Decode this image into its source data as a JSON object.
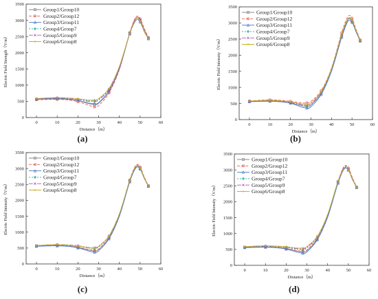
{
  "chart_data": [
    {
      "type": "line",
      "panel_label": "(a)",
      "xlabel": "Distance（m）",
      "ylabel": "Electric Field Strength（V/m）",
      "xlim": [
        -5,
        60
      ],
      "ylim": [
        0,
        3500
      ],
      "xticks": [
        0,
        10,
        20,
        30,
        40,
        50,
        60
      ],
      "yticks": [
        0,
        500,
        1000,
        1500,
        2000,
        2500,
        3000,
        3500
      ],
      "legend": "top-left",
      "x": [
        0,
        5,
        10,
        15,
        20,
        25,
        28,
        30,
        35,
        40,
        45,
        48,
        50,
        52,
        54
      ],
      "series": [
        {
          "name": "Group1/Group10",
          "values": [
            560,
            570,
            575,
            560,
            520,
            430,
            400,
            440,
            800,
            1500,
            2600,
            3050,
            3000,
            2700,
            2450
          ]
        },
        {
          "name": "Group2/Group12",
          "values": [
            550,
            555,
            560,
            545,
            490,
            380,
            330,
            370,
            760,
            1480,
            2620,
            3100,
            3050,
            2750,
            2470
          ]
        },
        {
          "name": "Group3/Group11",
          "values": [
            570,
            585,
            590,
            575,
            530,
            450,
            430,
            460,
            820,
            1520,
            2580,
            3000,
            2950,
            2650,
            2430
          ]
        },
        {
          "name": "Group4/Group7",
          "values": [
            580,
            600,
            610,
            600,
            570,
            520,
            520,
            560,
            880,
            1560,
            2600,
            3050,
            3000,
            2680,
            2450
          ]
        },
        {
          "name": "Group5/Group9",
          "values": [
            575,
            595,
            605,
            595,
            560,
            500,
            500,
            540,
            860,
            1540,
            2610,
            3080,
            3020,
            2700,
            2460
          ]
        },
        {
          "name": "Group6/Group8",
          "values": [
            585,
            605,
            615,
            605,
            580,
            540,
            545,
            590,
            900,
            1580,
            2600,
            3040,
            2980,
            2660,
            2440
          ]
        }
      ]
    },
    {
      "type": "line",
      "panel_label": "(b)",
      "xlabel": "Distance（m）",
      "ylabel": "Electric Field Intensity（V/m）",
      "xlim": [
        -5,
        60
      ],
      "ylim": [
        0,
        3500
      ],
      "xticks": [
        0,
        10,
        20,
        30,
        40,
        50,
        60
      ],
      "yticks": [
        0,
        500,
        1000,
        1500,
        2000,
        2500,
        3000,
        3500
      ],
      "legend": "top-left",
      "x": [
        0,
        5,
        10,
        15,
        20,
        25,
        28,
        30,
        35,
        40,
        45,
        48,
        50,
        52,
        54
      ],
      "series": [
        {
          "name": "Group1/Group10",
          "values": [
            560,
            575,
            580,
            565,
            520,
            440,
            410,
            450,
            820,
            1550,
            2600,
            3100,
            3050,
            2750,
            2450
          ]
        },
        {
          "name": "Group2/Group12",
          "values": [
            580,
            600,
            615,
            600,
            570,
            520,
            520,
            570,
            900,
            1600,
            2700,
            3200,
            3150,
            2800,
            2480
          ]
        },
        {
          "name": "Group3/Group11",
          "values": [
            555,
            565,
            570,
            555,
            510,
            400,
            360,
            400,
            780,
            1500,
            2560,
            3050,
            3020,
            2720,
            2440
          ]
        },
        {
          "name": "Group4/Group7",
          "values": [
            565,
            580,
            585,
            570,
            525,
            450,
            420,
            460,
            830,
            1560,
            2620,
            3120,
            3060,
            2760,
            2450
          ]
        },
        {
          "name": "Group5/Group9",
          "values": [
            570,
            585,
            590,
            575,
            535,
            470,
            450,
            490,
            850,
            1570,
            2640,
            3130,
            3070,
            2760,
            2455
          ]
        },
        {
          "name": "Group6/Group8",
          "values": [
            575,
            590,
            600,
            585,
            550,
            490,
            480,
            520,
            870,
            1580,
            2650,
            3140,
            3080,
            2770,
            2460
          ]
        }
      ]
    },
    {
      "type": "line",
      "panel_label": "(c)",
      "xlabel": "Distance（m）",
      "ylabel": "Electric Field Intensity（V/m）",
      "xlim": [
        -5,
        60
      ],
      "ylim": [
        0,
        3500
      ],
      "xticks": [
        0,
        10,
        20,
        30,
        40,
        50,
        60
      ],
      "yticks": [
        0,
        500,
        1000,
        1500,
        2000,
        2500,
        3000,
        3500
      ],
      "legend": "top-left",
      "x": [
        0,
        5,
        10,
        15,
        20,
        25,
        28,
        30,
        35,
        40,
        45,
        48,
        50,
        52,
        54
      ],
      "series": [
        {
          "name": "Group1/Group10",
          "values": [
            560,
            575,
            580,
            565,
            520,
            440,
            410,
            450,
            820,
            1520,
            2600,
            3050,
            3000,
            2700,
            2450
          ]
        },
        {
          "name": "Group2/Group12",
          "values": [
            565,
            580,
            590,
            575,
            530,
            460,
            430,
            470,
            840,
            1540,
            2640,
            3100,
            3050,
            2740,
            2460
          ]
        },
        {
          "name": "Group3/Group11",
          "values": [
            555,
            565,
            570,
            555,
            505,
            410,
            370,
            410,
            790,
            1500,
            2580,
            3020,
            2980,
            2690,
            2440
          ]
        },
        {
          "name": "Group4/Group7",
          "values": [
            570,
            590,
            600,
            590,
            560,
            500,
            490,
            530,
            870,
            1560,
            2620,
            3060,
            3010,
            2710,
            2450
          ]
        },
        {
          "name": "Group5/Group9",
          "values": [
            580,
            600,
            610,
            600,
            575,
            520,
            515,
            560,
            890,
            1580,
            2630,
            3080,
            3020,
            2720,
            2455
          ]
        },
        {
          "name": "Group6/Group8",
          "values": [
            575,
            595,
            605,
            595,
            565,
            510,
            500,
            545,
            880,
            1570,
            2625,
            3070,
            3015,
            2715,
            2452
          ]
        }
      ]
    },
    {
      "type": "line",
      "panel_label": "(d)",
      "xlabel": "Distance（m）",
      "ylabel": "Electric Field Intensity（V/m）",
      "xlim": [
        -5,
        60
      ],
      "ylim": [
        0,
        3500
      ],
      "xticks": [
        0,
        10,
        20,
        30,
        40,
        50,
        60
      ],
      "yticks": [
        0,
        500,
        1000,
        1500,
        2000,
        2500,
        3000,
        3500
      ],
      "legend": "top-left",
      "x": [
        0,
        5,
        10,
        15,
        20,
        25,
        28,
        30,
        35,
        40,
        45,
        48,
        50,
        52,
        54
      ],
      "series": [
        {
          "name": "Group1/Group10",
          "values": [
            560,
            575,
            580,
            565,
            525,
            450,
            420,
            460,
            830,
            1530,
            2600,
            3050,
            3000,
            2700,
            2450
          ]
        },
        {
          "name": "Group2/Group12",
          "values": [
            565,
            580,
            590,
            575,
            535,
            465,
            440,
            480,
            850,
            1550,
            2640,
            3110,
            3060,
            2750,
            2460
          ]
        },
        {
          "name": "Group3/Group11",
          "values": [
            555,
            565,
            570,
            555,
            510,
            420,
            380,
            420,
            800,
            1510,
            2580,
            3030,
            2990,
            2690,
            2445
          ]
        },
        {
          "name": "Group4/Group7",
          "values": [
            570,
            590,
            600,
            590,
            560,
            505,
            495,
            540,
            880,
            1570,
            2620,
            3070,
            3020,
            2720,
            2450
          ]
        },
        {
          "name": "Group5/Group9",
          "values": [
            580,
            600,
            610,
            600,
            575,
            525,
            520,
            565,
            900,
            1590,
            2630,
            3090,
            3030,
            2725,
            2455
          ]
        },
        {
          "name": "Group6/Group8",
          "values": [
            585,
            605,
            615,
            605,
            585,
            545,
            545,
            590,
            910,
            1600,
            2640,
            3060,
            3000,
            2700,
            2450
          ]
        }
      ]
    }
  ],
  "series_colors": [
    "#8a8a8a",
    "#e85a4f",
    "#4a78c8",
    "#2aa89a",
    "#b050c0",
    "#c8b020"
  ]
}
